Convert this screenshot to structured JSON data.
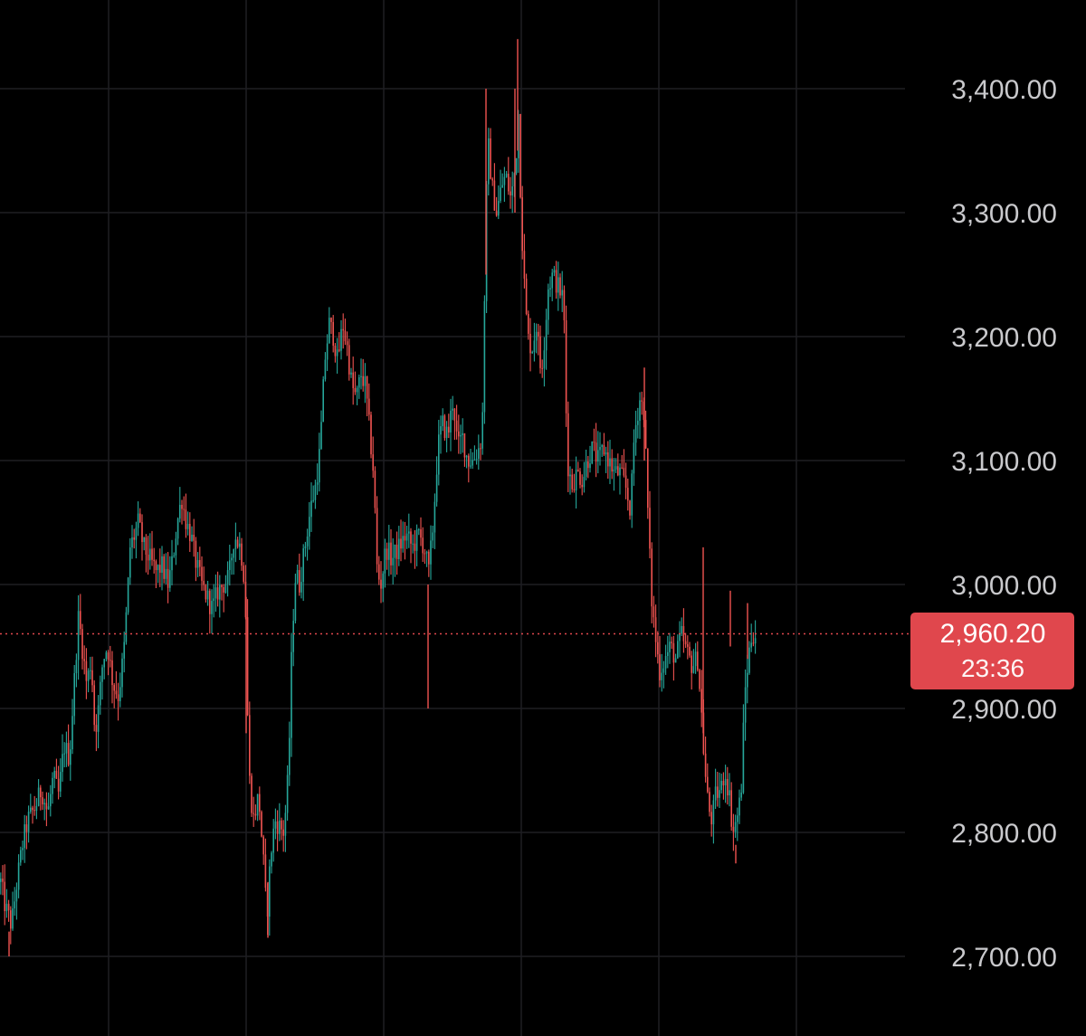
{
  "colors": {
    "background": "#000000",
    "grid": "#1f1f22",
    "up": "#26a69a",
    "down": "#ef5350",
    "axis_text": "#c9c9cc",
    "badge_bg": "#e0474d",
    "last_price_line": "#e0474d"
  },
  "chart_data": {
    "type": "candlestick",
    "title": "",
    "xlabel": "",
    "ylabel": "",
    "ylim": [
      2640,
      3490
    ],
    "y_ticks": [
      "3,400.00",
      "3,300.00",
      "3,200.00",
      "3,100.00",
      "3,000.00",
      "2,900.00",
      "2,800.00",
      "2,700.00"
    ],
    "y_tick_values": [
      3400,
      3300,
      3200,
      3100,
      3000,
      2900,
      2800,
      2700
    ],
    "grid": true,
    "last_price": 2960.2,
    "last_price_label": "2,960.20",
    "countdown_label": "23:36",
    "path": [
      [
        0,
        2760
      ],
      [
        5,
        2740
      ],
      [
        12,
        2725
      ],
      [
        18,
        2760
      ],
      [
        24,
        2790
      ],
      [
        30,
        2810
      ],
      [
        38,
        2820
      ],
      [
        45,
        2835
      ],
      [
        52,
        2815
      ],
      [
        58,
        2845
      ],
      [
        64,
        2830
      ],
      [
        70,
        2870
      ],
      [
        76,
        2860
      ],
      [
        82,
        2930
      ],
      [
        86,
        2975
      ],
      [
        90,
        2950
      ],
      [
        95,
        2920
      ],
      [
        100,
        2940
      ],
      [
        104,
        2880
      ],
      [
        108,
        2900
      ],
      [
        113,
        2940
      ],
      [
        118,
        2950
      ],
      [
        124,
        2920
      ],
      [
        130,
        2910
      ],
      [
        136,
        2945
      ],
      [
        140,
        2990
      ],
      [
        143,
        3030
      ],
      [
        148,
        3040
      ],
      [
        152,
        3050
      ],
      [
        158,
        3030
      ],
      [
        165,
        3020
      ],
      [
        172,
        3010
      ],
      [
        178,
        3015
      ],
      [
        185,
        3000
      ],
      [
        190,
        3020
      ],
      [
        195,
        3050
      ],
      [
        200,
        3070
      ],
      [
        205,
        3050
      ],
      [
        210,
        3040
      ],
      [
        215,
        3020
      ],
      [
        222,
        3000
      ],
      [
        228,
        2990
      ],
      [
        234,
        2980
      ],
      [
        240,
        2995
      ],
      [
        246,
        3000
      ],
      [
        252,
        3005
      ],
      [
        258,
        3040
      ],
      [
        265,
        3030
      ],
      [
        270,
        3000
      ],
      [
        274,
        2850
      ],
      [
        279,
        2810
      ],
      [
        285,
        2830
      ],
      [
        290,
        2780
      ],
      [
        294,
        2730
      ],
      [
        298,
        2780
      ],
      [
        303,
        2810
      ],
      [
        308,
        2805
      ],
      [
        313,
        2800
      ],
      [
        318,
        2850
      ],
      [
        322,
        2960
      ],
      [
        326,
        3010
      ],
      [
        330,
        3000
      ],
      [
        336,
        3030
      ],
      [
        342,
        3060
      ],
      [
        348,
        3080
      ],
      [
        353,
        3110
      ],
      [
        358,
        3180
      ],
      [
        363,
        3210
      ],
      [
        368,
        3200
      ],
      [
        372,
        3180
      ],
      [
        378,
        3210
      ],
      [
        383,
        3190
      ],
      [
        388,
        3160
      ],
      [
        393,
        3150
      ],
      [
        398,
        3170
      ],
      [
        403,
        3160
      ],
      [
        408,
        3120
      ],
      [
        412,
        3090
      ],
      [
        416,
        3010
      ],
      [
        420,
        3000
      ],
      [
        426,
        3030
      ],
      [
        432,
        3020
      ],
      [
        440,
        3030
      ],
      [
        448,
        3040
      ],
      [
        455,
        3030
      ],
      [
        462,
        3040
      ],
      [
        468,
        3030
      ],
      [
        473,
        3010
      ],
      [
        478,
        3050
      ],
      [
        483,
        3110
      ],
      [
        488,
        3130
      ],
      [
        494,
        3120
      ],
      [
        500,
        3150
      ],
      [
        505,
        3110
      ],
      [
        510,
        3120
      ],
      [
        516,
        3100
      ],
      [
        522,
        3100
      ],
      [
        528,
        3110
      ],
      [
        532,
        3120
      ],
      [
        535,
        3250
      ],
      [
        538,
        3360
      ],
      [
        543,
        3320
      ],
      [
        548,
        3300
      ],
      [
        553,
        3320
      ],
      [
        558,
        3330
      ],
      [
        564,
        3310
      ],
      [
        569,
        3340
      ],
      [
        572,
        3380
      ],
      [
        575,
        3300
      ],
      [
        578,
        3250
      ],
      [
        582,
        3200
      ],
      [
        587,
        3190
      ],
      [
        592,
        3210
      ],
      [
        597,
        3170
      ],
      [
        601,
        3200
      ],
      [
        605,
        3240
      ],
      [
        610,
        3250
      ],
      [
        616,
        3240
      ],
      [
        622,
        3230
      ],
      [
        626,
        3100
      ],
      [
        631,
        3080
      ],
      [
        637,
        3090
      ],
      [
        643,
        3085
      ],
      [
        648,
        3100
      ],
      [
        654,
        3110
      ],
      [
        660,
        3100
      ],
      [
        666,
        3110
      ],
      [
        672,
        3100
      ],
      [
        678,
        3090
      ],
      [
        684,
        3090
      ],
      [
        690,
        3080
      ],
      [
        696,
        3060
      ],
      [
        700,
        3120
      ],
      [
        706,
        3150
      ],
      [
        711,
        3140
      ],
      [
        715,
        3060
      ],
      [
        719,
        2990
      ],
      [
        723,
        2960
      ],
      [
        728,
        2930
      ],
      [
        734,
        2940
      ],
      [
        740,
        2950
      ],
      [
        746,
        2940
      ],
      [
        752,
        2960
      ],
      [
        758,
        2945
      ],
      [
        764,
        2935
      ],
      [
        770,
        2940
      ],
      [
        774,
        2900
      ],
      [
        778,
        2850
      ],
      [
        782,
        2820
      ],
      [
        786,
        2810
      ],
      [
        790,
        2830
      ],
      [
        796,
        2835
      ],
      [
        800,
        2850
      ],
      [
        805,
        2830
      ],
      [
        809,
        2800
      ],
      [
        813,
        2810
      ],
      [
        818,
        2830
      ],
      [
        822,
        2910
      ],
      [
        826,
        2940
      ],
      [
        830,
        2960
      ],
      [
        834,
        2960
      ]
    ]
  }
}
